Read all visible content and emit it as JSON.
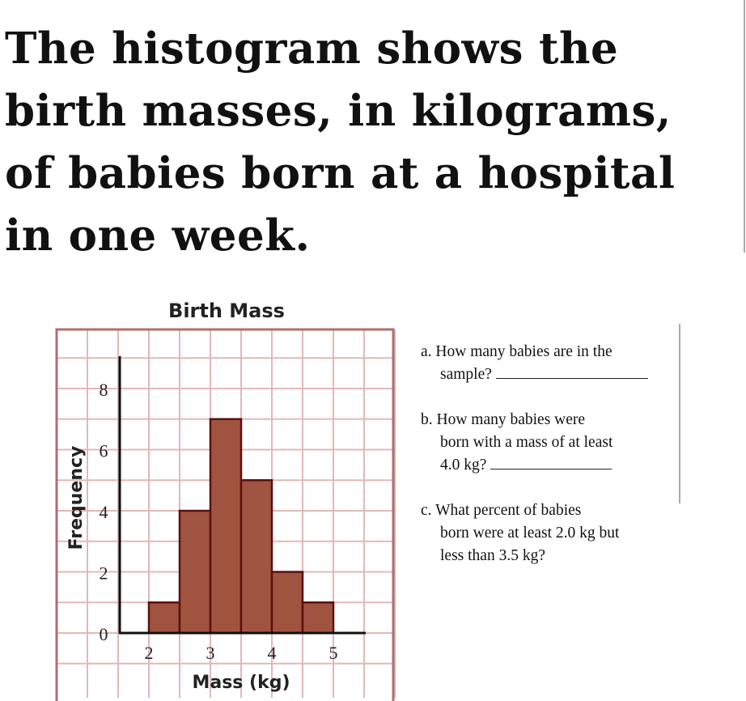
{
  "heading": "The histogram shows the birth masses, in kilograms, of babies born at a hospital in one week.",
  "questions": [
    {
      "label": "a.",
      "line1": "How many babies are in the",
      "line2": "sample?"
    },
    {
      "label": "b.",
      "line1": "How many babies were",
      "line2": "born with a mass of at least",
      "line3": "4.0 kg?"
    },
    {
      "label": "c.",
      "line1": "What percent of babies",
      "line2": "born were at least 2.0 kg but",
      "line3": "less than 3.5 kg?"
    }
  ],
  "chart_data": {
    "type": "bar",
    "title": "Birth Mass",
    "xlabel": "Mass (kg)",
    "ylabel": "Frequency",
    "bins": [
      [
        2,
        2.5
      ],
      [
        2.5,
        3
      ],
      [
        3,
        3.5
      ],
      [
        3.5,
        4
      ],
      [
        4,
        4.5
      ],
      [
        4.5,
        5
      ]
    ],
    "values": [
      1,
      4,
      7,
      5,
      2,
      1
    ],
    "xticks": [
      2,
      3,
      4,
      5
    ],
    "yticks": [
      0,
      2,
      4,
      6,
      8
    ],
    "xlim": [
      1.5,
      5.5
    ],
    "ylim": [
      0,
      9
    ],
    "grid": true,
    "colors": {
      "bar": "#a0543f",
      "bar_edge": "#5a1010",
      "grid": "#e2b8b8",
      "frame": "#b07070"
    }
  }
}
